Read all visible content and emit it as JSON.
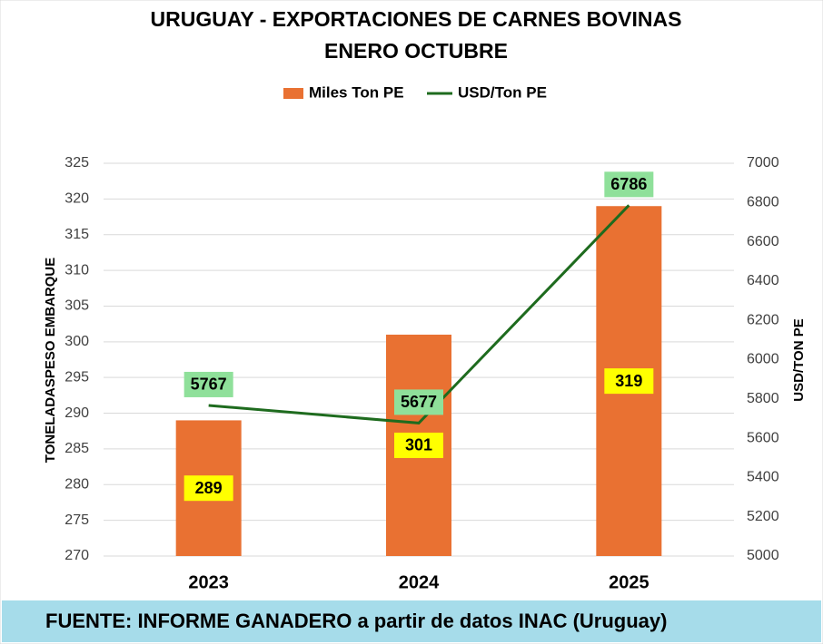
{
  "chart_data": {
    "type": "bar",
    "title": "URUGUAY - EXPORTACIONES DE CARNES BOVINAS",
    "subtitle": "ENERO OCTUBRE",
    "y_label": "TONELADASPESO EMBARQUE",
    "y2_label": "USD/TON PE",
    "source": "FUENTE: INFORME GANADERO a partir de datos INAC (Uruguay)",
    "categories": [
      "2023",
      "2024",
      "2025"
    ],
    "series": [
      {
        "name": "Miles Ton PE",
        "type": "bar",
        "color": "#e97132",
        "values": [
          289,
          301,
          319
        ]
      },
      {
        "name": "USD/Ton PE",
        "type": "line",
        "axis": "y2",
        "color": "#1e6b1e",
        "values": [
          5767,
          5677,
          6786
        ]
      }
    ],
    "ylim": [
      270,
      325
    ],
    "yticks": [
      270,
      275,
      280,
      285,
      290,
      295,
      300,
      305,
      310,
      315,
      320,
      325
    ],
    "y2lim": [
      5000,
      7000
    ],
    "y2ticks": [
      5000,
      5200,
      5400,
      5600,
      5800,
      6000,
      6200,
      6400,
      6600,
      6800,
      7000
    ],
    "grid": true
  }
}
